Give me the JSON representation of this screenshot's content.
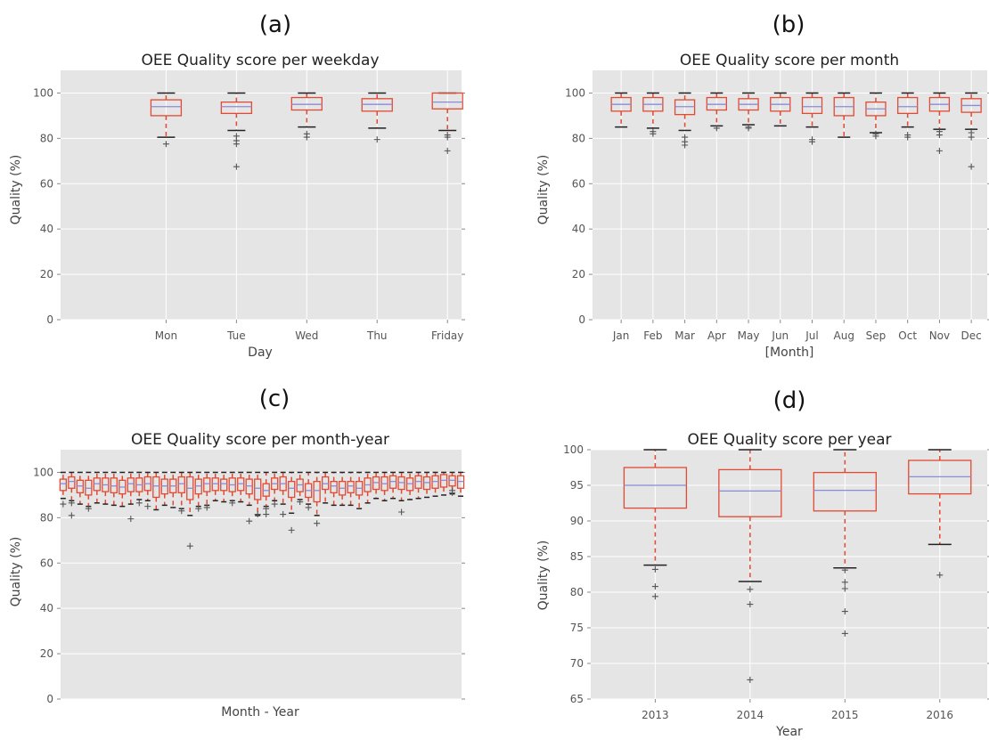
{
  "panels": [
    {
      "letter": "(a)"
    },
    {
      "letter": "(b)"
    },
    {
      "letter": "(c)"
    },
    {
      "letter": "(d)"
    }
  ],
  "colors": {
    "plot_bg": "#e5e5e5",
    "grid": "#ffffff",
    "box": "#e24a33",
    "median": "#8b8bd8",
    "cap": "#222222",
    "flier": "#555555",
    "text": "#444444"
  },
  "chart_data": [
    {
      "type": "box",
      "title": "OEE Quality score per weekday",
      "xlabel": "Day",
      "ylabel": "Quality (%)",
      "ylim": [
        0,
        110
      ],
      "yticks": [
        0,
        20,
        40,
        60,
        80,
        100
      ],
      "grid": true,
      "categories": [
        "Mon",
        "Tue",
        "Wed",
        "Thu",
        "Friday"
      ],
      "boxes": [
        {
          "q1": 90,
          "median": 94,
          "q3": 97,
          "whislo": 80.5,
          "whishi": 100,
          "fliers": [
            77.5
          ]
        },
        {
          "q1": 91,
          "median": 94,
          "q3": 96,
          "whislo": 83.5,
          "whishi": 100,
          "fliers": [
            81,
            79,
            77.5,
            67.5
          ]
        },
        {
          "q1": 92.5,
          "median": 95,
          "q3": 98,
          "whislo": 85,
          "whishi": 100,
          "fliers": [
            82,
            80.5
          ]
        },
        {
          "q1": 92,
          "median": 95,
          "q3": 97.5,
          "whislo": 84.5,
          "whishi": 100,
          "fliers": [
            79.5
          ]
        },
        {
          "q1": 93,
          "median": 96,
          "q3": 100,
          "whislo": 83.5,
          "whishi": 100,
          "fliers": [
            81.5,
            80.5,
            74.5
          ]
        }
      ]
    },
    {
      "type": "box",
      "title": "OEE Quality score per month",
      "xlabel": "[Month]",
      "ylabel": "Quality (%)",
      "ylim": [
        0,
        110
      ],
      "yticks": [
        0,
        20,
        40,
        60,
        80,
        100
      ],
      "grid": true,
      "categories": [
        "Jan",
        "Feb",
        "Mar",
        "Apr",
        "May",
        "Jun",
        "Jul",
        "Aug",
        "Sep",
        "Oct",
        "Nov",
        "Dec"
      ],
      "boxes": [
        {
          "q1": 92,
          "median": 95,
          "q3": 98,
          "whislo": 85,
          "whishi": 100,
          "fliers": []
        },
        {
          "q1": 92,
          "median": 95,
          "q3": 98,
          "whislo": 84.5,
          "whishi": 100,
          "fliers": [
            83,
            82
          ]
        },
        {
          "q1": 90.5,
          "median": 94,
          "q3": 97,
          "whislo": 83.5,
          "whishi": 100,
          "fliers": [
            80.5,
            78.5,
            77
          ]
        },
        {
          "q1": 92.5,
          "median": 95,
          "q3": 98,
          "whislo": 85.5,
          "whishi": 100,
          "fliers": [
            84.5
          ]
        },
        {
          "q1": 92.5,
          "median": 95,
          "q3": 97.5,
          "whislo": 86,
          "whishi": 100,
          "fliers": [
            85,
            84.5
          ]
        },
        {
          "q1": 92,
          "median": 95,
          "q3": 98,
          "whislo": 85.5,
          "whishi": 100,
          "fliers": []
        },
        {
          "q1": 91,
          "median": 94,
          "q3": 98,
          "whislo": 85,
          "whishi": 100,
          "fliers": [
            79.5,
            78.5
          ]
        },
        {
          "q1": 90,
          "median": 94,
          "q3": 98,
          "whislo": 80.5,
          "whishi": 100,
          "fliers": []
        },
        {
          "q1": 90,
          "median": 93,
          "q3": 96,
          "whislo": 82.5,
          "whishi": 100,
          "fliers": [
            82,
            81
          ]
        },
        {
          "q1": 91,
          "median": 94,
          "q3": 98,
          "whislo": 85,
          "whishi": 100,
          "fliers": [
            81.5,
            80.5
          ]
        },
        {
          "q1": 92,
          "median": 95,
          "q3": 98,
          "whislo": 84,
          "whishi": 100,
          "fliers": [
            83,
            81.5,
            74.5
          ]
        },
        {
          "q1": 91.5,
          "median": 94.5,
          "q3": 97.5,
          "whislo": 84,
          "whishi": 100,
          "fliers": [
            82.5,
            80.5,
            67.5
          ]
        }
      ]
    },
    {
      "type": "box",
      "title": "OEE Quality score per month-year",
      "xlabel": "Month - Year",
      "ylabel": "Quality (%)",
      "ylim": [
        0,
        110
      ],
      "yticks": [
        0,
        20,
        40,
        60,
        80,
        100
      ],
      "grid": true,
      "categories": [],
      "n_boxes": 48,
      "boxes": [
        {
          "q1": 92,
          "median": 95,
          "q3": 97,
          "whislo": 88.5,
          "whishi": 100,
          "fliers": [
            86
          ]
        },
        {
          "q1": 93,
          "median": 96,
          "q3": 98,
          "whislo": 87.5,
          "whishi": 100,
          "fliers": [
            86.5,
            81
          ]
        },
        {
          "q1": 91,
          "median": 94,
          "q3": 96.5,
          "whislo": 86,
          "whishi": 100,
          "fliers": []
        },
        {
          "q1": 90,
          "median": 93,
          "q3": 96.5,
          "whislo": 85,
          "whishi": 100,
          "fliers": [
            84
          ]
        },
        {
          "q1": 92,
          "median": 95,
          "q3": 97.5,
          "whislo": 86.5,
          "whishi": 100,
          "fliers": []
        },
        {
          "q1": 91.5,
          "median": 94.5,
          "q3": 97.5,
          "whislo": 86,
          "whishi": 100,
          "fliers": []
        },
        {
          "q1": 91,
          "median": 94,
          "q3": 97.5,
          "whislo": 85.5,
          "whishi": 100,
          "fliers": []
        },
        {
          "q1": 90.5,
          "median": 93.5,
          "q3": 96.5,
          "whislo": 85,
          "whishi": 100,
          "fliers": []
        },
        {
          "q1": 91.5,
          "median": 95,
          "q3": 97.5,
          "whislo": 86,
          "whishi": 100,
          "fliers": [
            79.5
          ]
        },
        {
          "q1": 91.5,
          "median": 94.5,
          "q3": 97.5,
          "whislo": 88,
          "whishi": 100,
          "fliers": [
            86.5
          ]
        },
        {
          "q1": 92,
          "median": 95,
          "q3": 98,
          "whislo": 87.5,
          "whishi": 100,
          "fliers": [
            85
          ]
        },
        {
          "q1": 89,
          "median": 94,
          "q3": 98,
          "whislo": 83.5,
          "whishi": 100,
          "fliers": []
        },
        {
          "q1": 90.5,
          "median": 94,
          "q3": 97,
          "whislo": 85.5,
          "whishi": 100,
          "fliers": []
        },
        {
          "q1": 91,
          "median": 94,
          "q3": 97,
          "whislo": 84.5,
          "whishi": 100,
          "fliers": []
        },
        {
          "q1": 91,
          "median": 95,
          "q3": 98,
          "whislo": 84,
          "whishi": 100,
          "fliers": [
            83
          ]
        },
        {
          "q1": 88,
          "median": 93,
          "q3": 98,
          "whislo": 81,
          "whishi": 100,
          "fliers": [
            67.5
          ]
        },
        {
          "q1": 90.5,
          "median": 94,
          "q3": 97,
          "whislo": 85,
          "whishi": 100,
          "fliers": [
            84
          ]
        },
        {
          "q1": 91.5,
          "median": 95,
          "q3": 97.5,
          "whislo": 85.5,
          "whishi": 100,
          "fliers": [
            84.5
          ]
        },
        {
          "q1": 92,
          "median": 95,
          "q3": 97.5,
          "whislo": 87.5,
          "whishi": 100,
          "fliers": []
        },
        {
          "q1": 92,
          "median": 95,
          "q3": 97,
          "whislo": 87,
          "whishi": 100,
          "fliers": []
        },
        {
          "q1": 91.5,
          "median": 94.5,
          "q3": 97.5,
          "whislo": 87.5,
          "whishi": 100,
          "fliers": [
            86.5
          ]
        },
        {
          "q1": 92,
          "median": 95,
          "q3": 97.5,
          "whislo": 87,
          "whishi": 100,
          "fliers": []
        },
        {
          "q1": 90.5,
          "median": 94,
          "q3": 97,
          "whislo": 85.5,
          "whishi": 100,
          "fliers": [
            78.5
          ]
        },
        {
          "q1": 88,
          "median": 93,
          "q3": 97,
          "whislo": 81,
          "whishi": 100,
          "fliers": [
            81.5
          ]
        },
        {
          "q1": 89.5,
          "median": 92,
          "q3": 95,
          "whislo": 85,
          "whishi": 100,
          "fliers": [
            84,
            81.5
          ]
        },
        {
          "q1": 92.5,
          "median": 95,
          "q3": 97.5,
          "whislo": 87.5,
          "whishi": 100,
          "fliers": [
            86
          ]
        },
        {
          "q1": 92,
          "median": 95,
          "q3": 98,
          "whislo": 86,
          "whishi": 100,
          "fliers": [
            81.5
          ]
        },
        {
          "q1": 89,
          "median": 93,
          "q3": 96,
          "whislo": 82,
          "whishi": 100,
          "fliers": [
            74.5
          ]
        },
        {
          "q1": 91.5,
          "median": 94.5,
          "q3": 97,
          "whislo": 88,
          "whishi": 100,
          "fliers": [
            87
          ]
        },
        {
          "q1": 89,
          "median": 92,
          "q3": 95,
          "whislo": 86,
          "whishi": 100,
          "fliers": [
            84.5
          ]
        },
        {
          "q1": 87,
          "median": 92,
          "q3": 96,
          "whislo": 81,
          "whishi": 100,
          "fliers": [
            77.5
          ]
        },
        {
          "q1": 92.5,
          "median": 95,
          "q3": 98,
          "whislo": 86.5,
          "whishi": 100,
          "fliers": []
        },
        {
          "q1": 91,
          "median": 94,
          "q3": 96,
          "whislo": 85.5,
          "whishi": 100,
          "fliers": []
        },
        {
          "q1": 90,
          "median": 93,
          "q3": 96,
          "whislo": 85.5,
          "whishi": 100,
          "fliers": []
        },
        {
          "q1": 91,
          "median": 94,
          "q3": 96,
          "whislo": 85.5,
          "whishi": 100,
          "fliers": []
        },
        {
          "q1": 90,
          "median": 93,
          "q3": 96,
          "whislo": 84,
          "whishi": 100,
          "fliers": []
        },
        {
          "q1": 91.5,
          "median": 94.5,
          "q3": 97.5,
          "whislo": 86.5,
          "whishi": 100,
          "fliers": []
        },
        {
          "q1": 92.5,
          "median": 95.5,
          "q3": 98,
          "whislo": 88.5,
          "whishi": 100,
          "fliers": []
        },
        {
          "q1": 92,
          "median": 95,
          "q3": 98,
          "whislo": 87.5,
          "whishi": 100,
          "fliers": []
        },
        {
          "q1": 93,
          "median": 96,
          "q3": 98.5,
          "whislo": 88.5,
          "whishi": 100,
          "fliers": []
        },
        {
          "q1": 92.5,
          "median": 95.5,
          "q3": 98,
          "whislo": 87.5,
          "whishi": 100,
          "fliers": [
            82.5
          ]
        },
        {
          "q1": 92,
          "median": 95,
          "q3": 97.5,
          "whislo": 88,
          "whishi": 100,
          "fliers": []
        },
        {
          "q1": 93,
          "median": 96,
          "q3": 98.5,
          "whislo": 88.5,
          "whishi": 100,
          "fliers": []
        },
        {
          "q1": 92.5,
          "median": 95.5,
          "q3": 98,
          "whislo": 89,
          "whishi": 100,
          "fliers": []
        },
        {
          "q1": 93,
          "median": 96,
          "q3": 98.5,
          "whislo": 89.5,
          "whishi": 100,
          "fliers": []
        },
        {
          "q1": 93.5,
          "median": 96.5,
          "q3": 99,
          "whislo": 90,
          "whishi": 100,
          "fliers": []
        },
        {
          "q1": 94,
          "median": 96.5,
          "q3": 98.5,
          "whislo": 90.5,
          "whishi": 100,
          "fliers": [
            92,
            91
          ]
        },
        {
          "q1": 93,
          "median": 96,
          "q3": 98.5,
          "whislo": 89.5,
          "whishi": 100,
          "fliers": []
        }
      ]
    },
    {
      "type": "box",
      "title": "OEE Quality score per year",
      "xlabel": "Year",
      "ylabel": "Quality (%)",
      "ylim": [
        65,
        100
      ],
      "yticks": [
        65,
        70,
        75,
        80,
        85,
        90,
        95,
        100
      ],
      "grid": true,
      "categories": [
        "2013",
        "2014",
        "2015",
        "2016"
      ],
      "boxes": [
        {
          "q1": 91.8,
          "median": 95,
          "q3": 97.5,
          "whislo": 83.8,
          "whishi": 100,
          "fliers": [
            83.2,
            80.8,
            79.4
          ]
        },
        {
          "q1": 90.6,
          "median": 94.2,
          "q3": 97.2,
          "whislo": 81.5,
          "whishi": 100,
          "fliers": [
            80.4,
            78.3,
            67.7
          ]
        },
        {
          "q1": 91.4,
          "median": 94.3,
          "q3": 96.8,
          "whislo": 83.4,
          "whishi": 100,
          "fliers": [
            83.1,
            81.4,
            80.5,
            77.3,
            74.2
          ]
        },
        {
          "q1": 93.8,
          "median": 96.2,
          "q3": 98.5,
          "whislo": 86.7,
          "whishi": 100,
          "fliers": [
            82.4
          ]
        }
      ]
    }
  ]
}
